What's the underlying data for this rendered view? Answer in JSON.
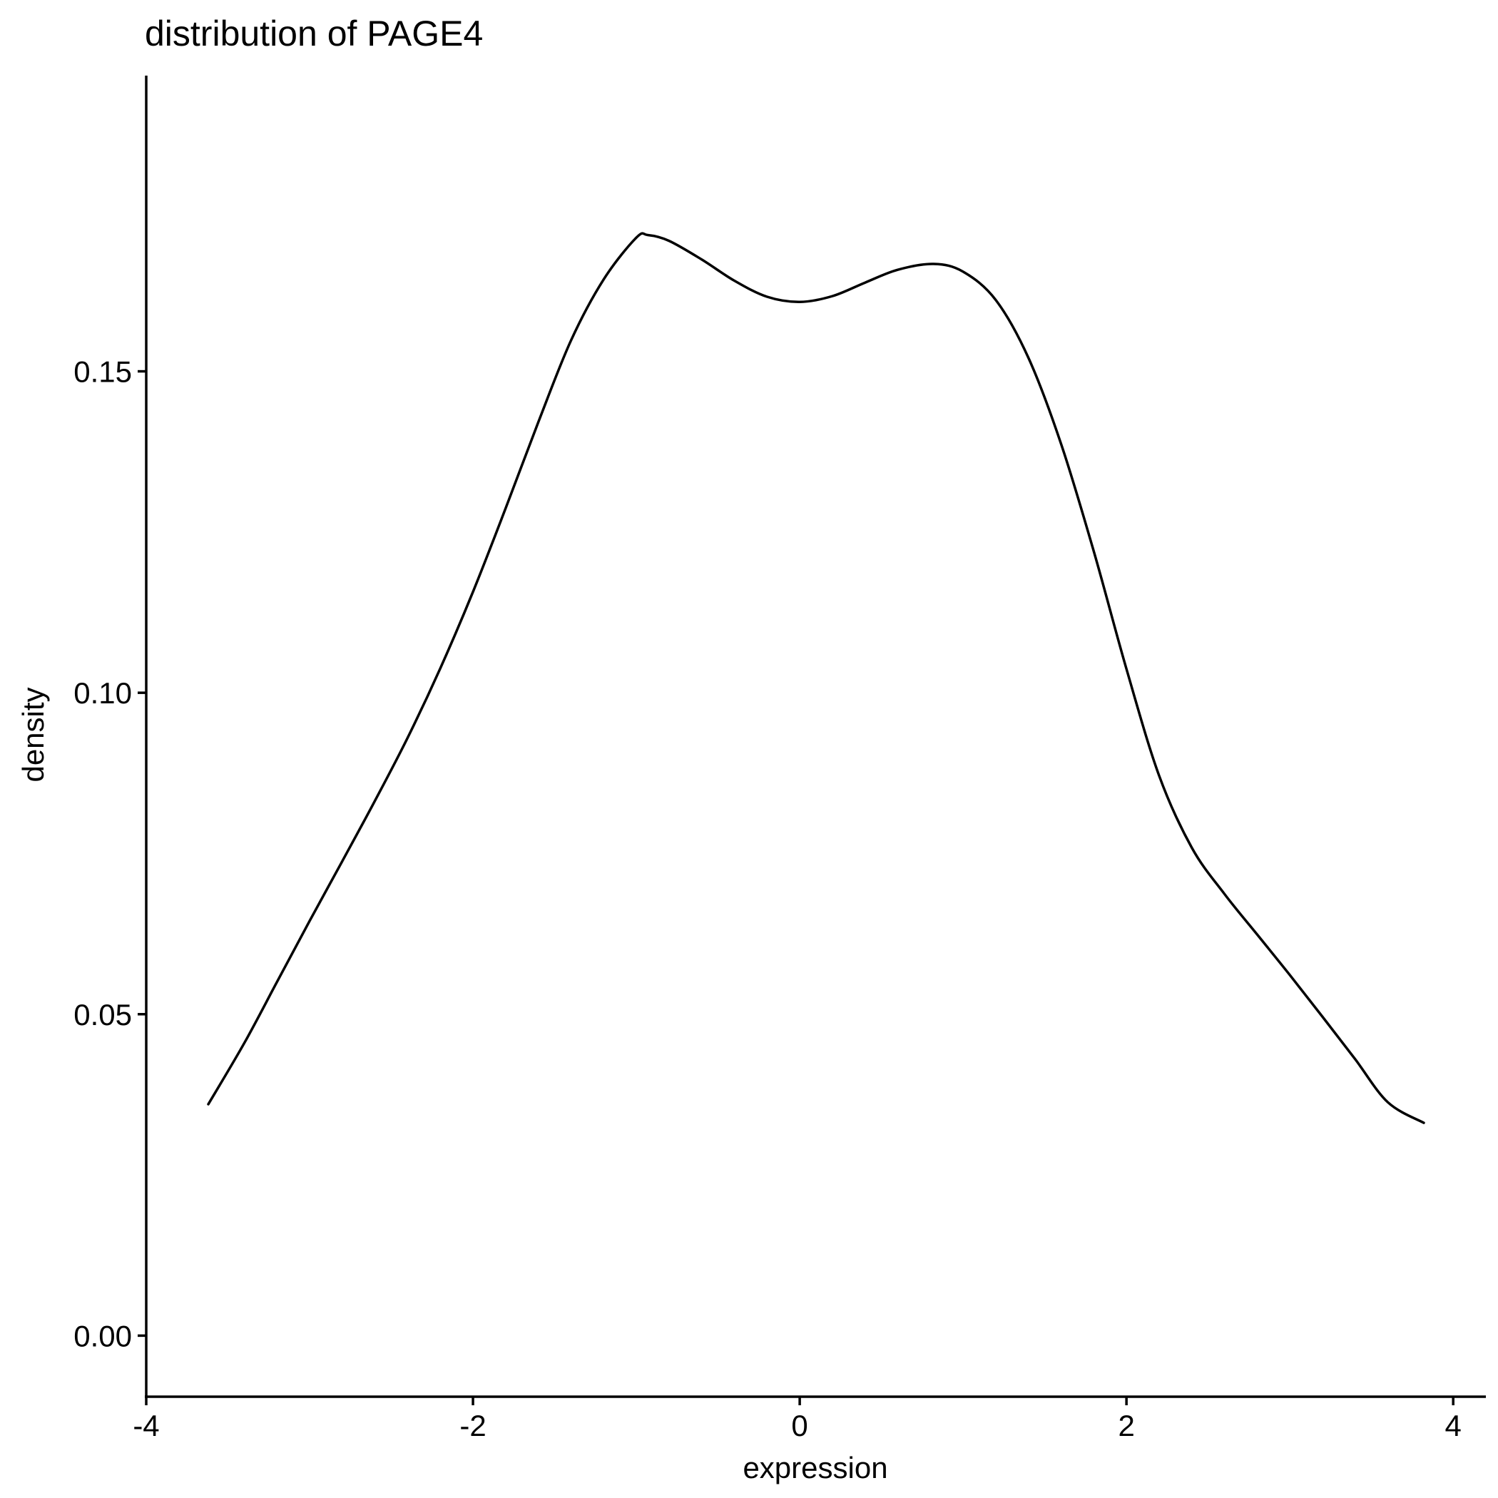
{
  "chart_data": {
    "type": "line",
    "title": "distribution of PAGE4",
    "xlabel": "expression",
    "ylabel": "density",
    "xlim": [
      -4.0,
      4.2
    ],
    "ylim": [
      -0.0095,
      0.196
    ],
    "x_ticks": [
      -4,
      -2,
      0,
      2,
      4
    ],
    "x_tick_labels": [
      "-4",
      "-2",
      "0",
      "2",
      "4"
    ],
    "y_ticks": [
      0.0,
      0.05,
      0.1,
      0.15
    ],
    "y_tick_labels": [
      "0.00",
      "0.05",
      "0.10",
      "0.15"
    ],
    "grid": false,
    "legend": "none",
    "line_color": "#000000",
    "series": [
      {
        "x": [
          -3.62,
          -3.4,
          -3.2,
          -3.0,
          -2.8,
          -2.6,
          -2.4,
          -2.2,
          -2.0,
          -1.8,
          -1.6,
          -1.4,
          -1.2,
          -1.0,
          -0.93,
          -0.8,
          -0.6,
          -0.4,
          -0.2,
          0.0,
          0.2,
          0.4,
          0.6,
          0.82,
          1.0,
          1.2,
          1.4,
          1.6,
          1.8,
          2.0,
          2.2,
          2.4,
          2.6,
          2.8,
          3.0,
          3.2,
          3.4,
          3.6,
          3.82
        ],
        "y": [
          0.036,
          0.0455,
          0.055,
          0.0645,
          0.0738,
          0.0832,
          0.093,
          0.1038,
          0.1157,
          0.1287,
          0.1421,
          0.1548,
          0.1643,
          0.1708,
          0.1712,
          0.1703,
          0.1674,
          0.1641,
          0.1616,
          0.1608,
          0.1617,
          0.1638,
          0.1658,
          0.1667,
          0.1655,
          0.1611,
          0.1521,
          0.1387,
          0.122,
          0.1037,
          0.0871,
          0.0759,
          0.0687,
          0.0624,
          0.0561,
          0.0496,
          0.043,
          0.0363,
          0.0331
        ]
      }
    ]
  }
}
